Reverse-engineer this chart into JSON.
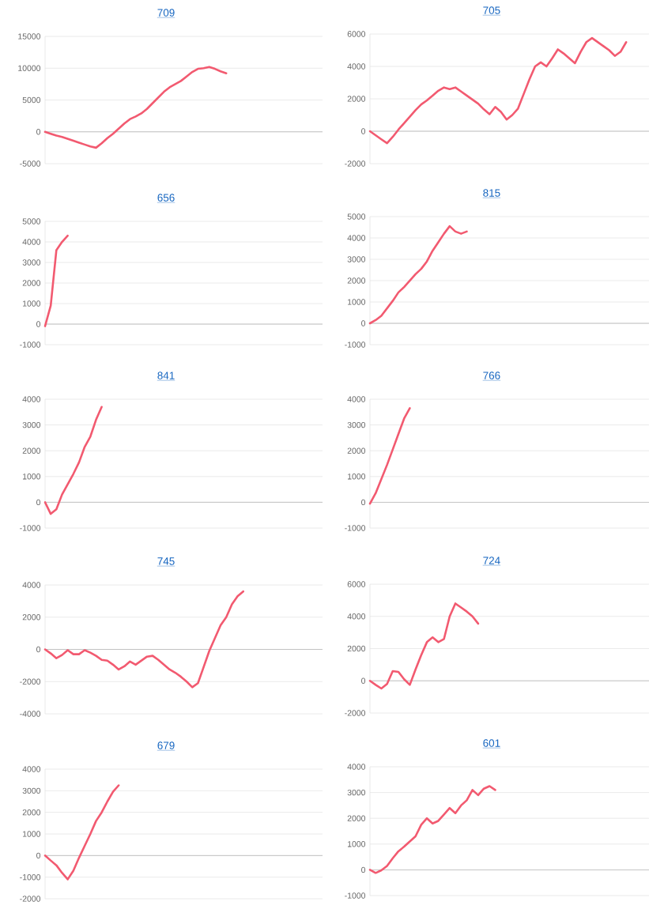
{
  "chart_data": [
    {
      "type": "line",
      "title": "709",
      "color": "#f25a70",
      "grid": "y",
      "tick_labels": "y",
      "ylim": [
        -5000,
        15000
      ],
      "yticks": [
        -5000,
        0,
        5000,
        10000,
        15000
      ],
      "categories": [
        null,
        null,
        null,
        null,
        null,
        null,
        null,
        null,
        null,
        null,
        null,
        null,
        null,
        null,
        null,
        null,
        null,
        null,
        null,
        null,
        null,
        null,
        null,
        null,
        null,
        null,
        null,
        null,
        null,
        null,
        null,
        null,
        null,
        null,
        null,
        null,
        null,
        null,
        null,
        null,
        null,
        null,
        null,
        null,
        null,
        null,
        null,
        null,
        null,
        null
      ],
      "values": [
        0,
        -300,
        -600,
        -800,
        -1100,
        -1400,
        -1700,
        -2000,
        -2300,
        -2500,
        -1800,
        -1000,
        -300,
        500,
        1300,
        2000,
        2400,
        2900,
        3600,
        4500,
        5400,
        6300,
        7000,
        7500,
        8000,
        8700,
        9400,
        9900,
        10000,
        10200,
        9900,
        9500,
        9200,
        null,
        null,
        null,
        null,
        null,
        null,
        null,
        null,
        null,
        null,
        null,
        null,
        null,
        null,
        null,
        null,
        null
      ]
    },
    {
      "type": "line",
      "title": "705",
      "color": "#f25a70",
      "grid": "y",
      "tick_labels": "y",
      "ylim": [
        -2000,
        6000
      ],
      "yticks": [
        -2000,
        0,
        2000,
        4000,
        6000
      ],
      "categories": [
        null,
        null,
        null,
        null,
        null,
        null,
        null,
        null,
        null,
        null,
        null,
        null,
        null,
        null,
        null,
        null,
        null,
        null,
        null,
        null,
        null,
        null,
        null,
        null,
        null,
        null,
        null,
        null,
        null,
        null,
        null,
        null,
        null,
        null,
        null,
        null,
        null,
        null,
        null,
        null,
        null,
        null,
        null,
        null,
        null,
        null,
        null,
        null,
        null,
        null
      ],
      "values": [
        0,
        -250,
        -500,
        -740,
        -350,
        100,
        500,
        900,
        1300,
        1650,
        1900,
        2200,
        2500,
        2700,
        2600,
        2700,
        2450,
        2200,
        1950,
        1700,
        1350,
        1050,
        1500,
        1200,
        720,
        1000,
        1400,
        2300,
        3200,
        4000,
        4250,
        4000,
        4500,
        5050,
        4800,
        4500,
        4200,
        4900,
        5500,
        5750,
        5500,
        5250,
        5000,
        4650,
        4900,
        5500,
        null,
        null,
        null,
        null
      ]
    },
    {
      "type": "line",
      "title": "656",
      "color": "#f25a70",
      "grid": "y",
      "tick_labels": "y",
      "ylim": [
        -1000,
        5000
      ],
      "yticks": [
        -1000,
        0,
        1000,
        2000,
        3000,
        4000,
        5000
      ],
      "categories": [
        null,
        null,
        null,
        null,
        null,
        null,
        null,
        null,
        null,
        null,
        null,
        null,
        null,
        null,
        null,
        null,
        null,
        null,
        null,
        null,
        null,
        null,
        null,
        null,
        null,
        null,
        null,
        null,
        null,
        null,
        null,
        null,
        null,
        null,
        null,
        null,
        null,
        null,
        null,
        null,
        null,
        null,
        null,
        null,
        null,
        null,
        null,
        null,
        null,
        null
      ],
      "values": [
        -100,
        900,
        3600,
        4000,
        4300,
        null,
        null,
        null,
        null,
        null,
        null,
        null,
        null,
        null,
        null,
        null,
        null,
        null,
        null,
        null,
        null,
        null,
        null,
        null,
        null,
        null,
        null,
        null,
        null,
        null,
        null,
        null,
        null,
        null,
        null,
        null,
        null,
        null,
        null,
        null,
        null,
        null,
        null,
        null,
        null,
        null,
        null,
        null,
        null,
        null
      ]
    },
    {
      "type": "line",
      "title": "815",
      "color": "#f25a70",
      "grid": "y",
      "tick_labels": "y",
      "ylim": [
        -1000,
        5000
      ],
      "yticks": [
        -1000,
        0,
        1000,
        2000,
        3000,
        4000,
        5000
      ],
      "categories": [
        null,
        null,
        null,
        null,
        null,
        null,
        null,
        null,
        null,
        null,
        null,
        null,
        null,
        null,
        null,
        null,
        null,
        null,
        null,
        null,
        null,
        null,
        null,
        null,
        null,
        null,
        null,
        null,
        null,
        null,
        null,
        null,
        null,
        null,
        null,
        null,
        null,
        null,
        null,
        null,
        null,
        null,
        null,
        null,
        null,
        null,
        null,
        null,
        null,
        null
      ],
      "values": [
        0,
        150,
        350,
        700,
        1050,
        1450,
        1700,
        2000,
        2300,
        2550,
        2900,
        3400,
        3800,
        4200,
        4550,
        4300,
        4200,
        4300,
        null,
        null,
        null,
        null,
        null,
        null,
        null,
        null,
        null,
        null,
        null,
        null,
        null,
        null,
        null,
        null,
        null,
        null,
        null,
        null,
        null,
        null,
        null,
        null,
        null,
        null,
        null,
        null,
        null,
        null,
        null,
        null
      ]
    },
    {
      "type": "line",
      "title": "841",
      "color": "#f25a70",
      "grid": "y",
      "tick_labels": "y",
      "ylim": [
        -1000,
        4000
      ],
      "yticks": [
        -1000,
        0,
        1000,
        2000,
        3000,
        4000
      ],
      "categories": [
        null,
        null,
        null,
        null,
        null,
        null,
        null,
        null,
        null,
        null,
        null,
        null,
        null,
        null,
        null,
        null,
        null,
        null,
        null,
        null,
        null,
        null,
        null,
        null,
        null,
        null,
        null,
        null,
        null,
        null,
        null,
        null,
        null,
        null,
        null,
        null,
        null,
        null,
        null,
        null,
        null,
        null,
        null,
        null,
        null,
        null,
        null,
        null,
        null,
        null
      ],
      "values": [
        0,
        -450,
        -270,
        300,
        700,
        1100,
        1550,
        2150,
        2550,
        3200,
        3700,
        null,
        null,
        null,
        null,
        null,
        null,
        null,
        null,
        null,
        null,
        null,
        null,
        null,
        null,
        null,
        null,
        null,
        null,
        null,
        null,
        null,
        null,
        null,
        null,
        null,
        null,
        null,
        null,
        null,
        null,
        null,
        null,
        null,
        null,
        null,
        null,
        null,
        null,
        null
      ]
    },
    {
      "type": "line",
      "title": "766",
      "color": "#f25a70",
      "grid": "y",
      "tick_labels": "y",
      "ylim": [
        -1000,
        4000
      ],
      "yticks": [
        -1000,
        0,
        1000,
        2000,
        3000,
        4000
      ],
      "categories": [
        null,
        null,
        null,
        null,
        null,
        null,
        null,
        null,
        null,
        null,
        null,
        null,
        null,
        null,
        null,
        null,
        null,
        null,
        null,
        null,
        null,
        null,
        null,
        null,
        null,
        null,
        null,
        null,
        null,
        null,
        null,
        null,
        null,
        null,
        null,
        null,
        null,
        null,
        null,
        null,
        null,
        null,
        null,
        null,
        null,
        null,
        null,
        null,
        null,
        null
      ],
      "values": [
        -50,
        350,
        900,
        1450,
        2050,
        2650,
        3250,
        3650,
        null,
        null,
        null,
        null,
        null,
        null,
        null,
        null,
        null,
        null,
        null,
        null,
        null,
        null,
        null,
        null,
        null,
        null,
        null,
        null,
        null,
        null,
        null,
        null,
        null,
        null,
        null,
        null,
        null,
        null,
        null,
        null,
        null,
        null,
        null,
        null,
        null,
        null,
        null,
        null,
        null,
        null
      ]
    },
    {
      "type": "line",
      "title": "745",
      "color": "#f25a70",
      "grid": "y",
      "tick_labels": "y",
      "ylim": [
        -4000,
        4000
      ],
      "yticks": [
        -4000,
        -2000,
        0,
        2000,
        4000
      ],
      "categories": [
        null,
        null,
        null,
        null,
        null,
        null,
        null,
        null,
        null,
        null,
        null,
        null,
        null,
        null,
        null,
        null,
        null,
        null,
        null,
        null,
        null,
        null,
        null,
        null,
        null,
        null,
        null,
        null,
        null,
        null,
        null,
        null,
        null,
        null,
        null,
        null,
        null,
        null,
        null,
        null,
        null,
        null,
        null,
        null,
        null,
        null,
        null,
        null,
        null,
        null
      ],
      "values": [
        0,
        -250,
        -550,
        -350,
        -50,
        -300,
        -300,
        -50,
        -200,
        -400,
        -650,
        -700,
        -950,
        -1250,
        -1050,
        -750,
        -950,
        -700,
        -450,
        -400,
        -650,
        -950,
        -1250,
        -1450,
        -1700,
        -2000,
        -2350,
        -2100,
        -1100,
        -100,
        700,
        1500,
        2000,
        2800,
        3300,
        3600,
        null,
        null,
        null,
        null,
        null,
        null,
        null,
        null,
        null,
        null,
        null,
        null,
        null,
        null
      ]
    },
    {
      "type": "line",
      "title": "724",
      "color": "#f25a70",
      "grid": "y",
      "tick_labels": "y",
      "ylim": [
        -2000,
        6000
      ],
      "yticks": [
        -2000,
        0,
        2000,
        4000,
        6000
      ],
      "categories": [
        null,
        null,
        null,
        null,
        null,
        null,
        null,
        null,
        null,
        null,
        null,
        null,
        null,
        null,
        null,
        null,
        null,
        null,
        null,
        null,
        null,
        null,
        null,
        null,
        null,
        null,
        null,
        null,
        null,
        null,
        null,
        null,
        null,
        null,
        null,
        null,
        null,
        null,
        null,
        null,
        null,
        null,
        null,
        null,
        null,
        null,
        null,
        null,
        null,
        null
      ],
      "values": [
        0,
        -250,
        -480,
        -200,
        600,
        550,
        100,
        -250,
        700,
        1600,
        2400,
        2700,
        2400,
        2600,
        4000,
        4800,
        4550,
        4300,
        4000,
        3550,
        null,
        null,
        null,
        null,
        null,
        null,
        null,
        null,
        null,
        null,
        null,
        null,
        null,
        null,
        null,
        null,
        null,
        null,
        null,
        null,
        null,
        null,
        null,
        null,
        null,
        null,
        null,
        null,
        null,
        null
      ]
    },
    {
      "type": "line",
      "title": "679",
      "color": "#f25a70",
      "grid": "y",
      "tick_labels": "y",
      "ylim": [
        -2000,
        4000
      ],
      "yticks": [
        -2000,
        -1000,
        0,
        1000,
        2000,
        3000,
        4000
      ],
      "categories": [
        null,
        null,
        null,
        null,
        null,
        null,
        null,
        null,
        null,
        null,
        null,
        null,
        null,
        null,
        null,
        null,
        null,
        null,
        null,
        null,
        null,
        null,
        null,
        null,
        null,
        null,
        null,
        null,
        null,
        null,
        null,
        null,
        null,
        null,
        null,
        null,
        null,
        null,
        null,
        null,
        null,
        null,
        null,
        null,
        null,
        null,
        null,
        null,
        null,
        null
      ],
      "values": [
        0,
        -230,
        -450,
        -800,
        -1100,
        -700,
        -100,
        450,
        1000,
        1600,
        2000,
        2500,
        2950,
        3250,
        null,
        null,
        null,
        null,
        null,
        null,
        null,
        null,
        null,
        null,
        null,
        null,
        null,
        null,
        null,
        null,
        null,
        null,
        null,
        null,
        null,
        null,
        null,
        null,
        null,
        null,
        null,
        null,
        null,
        null,
        null,
        null,
        null,
        null,
        null,
        null
      ]
    },
    {
      "type": "line",
      "title": "601",
      "color": "#f25a70",
      "grid": "y",
      "tick_labels": "y",
      "ylim": [
        -1000,
        4000
      ],
      "yticks": [
        -1000,
        0,
        1000,
        2000,
        3000,
        4000
      ],
      "categories": [
        null,
        null,
        null,
        null,
        null,
        null,
        null,
        null,
        null,
        null,
        null,
        null,
        null,
        null,
        null,
        null,
        null,
        null,
        null,
        null,
        null,
        null,
        null,
        null,
        null,
        null,
        null,
        null,
        null,
        null,
        null,
        null,
        null,
        null,
        null,
        null,
        null,
        null,
        null,
        null,
        null,
        null,
        null,
        null,
        null,
        null,
        null,
        null,
        null,
        null
      ],
      "values": [
        0,
        -120,
        -20,
        150,
        450,
        720,
        900,
        1100,
        1300,
        1750,
        2000,
        1800,
        1900,
        2150,
        2400,
        2200,
        2500,
        2700,
        3100,
        2900,
        3150,
        3250,
        3100,
        null,
        null,
        null,
        null,
        null,
        null,
        null,
        null,
        null,
        null,
        null,
        null,
        null,
        null,
        null,
        null,
        null,
        null,
        null,
        null,
        null,
        null,
        null,
        null,
        null,
        null,
        null
      ]
    }
  ]
}
